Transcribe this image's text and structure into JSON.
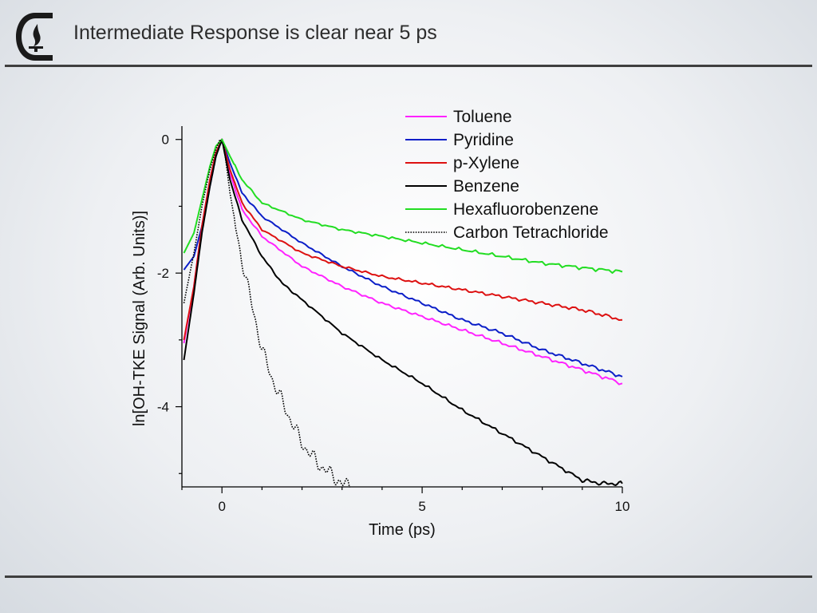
{
  "slide": {
    "title": "Intermediate Response is clear near 5 ps"
  },
  "logo": {
    "icon": "flame-c-logo-icon"
  },
  "colors": {
    "Toluene": "#ff22ff",
    "Pyridine": "#0b1ec8",
    "p-Xylene": "#dd1111",
    "Benzene": "#000000",
    "Hexafluorobenzene": "#22dd22",
    "Carbon Tetrachloride": "#000000"
  },
  "chart_data": {
    "type": "line",
    "title": "",
    "xlabel": "Time (ps)",
    "ylabel": "ln[OH-TKE Signal (Arb. Units)]",
    "xlim": [
      -1,
      10
    ],
    "ylim": [
      -5.2,
      0.2
    ],
    "xticks": [
      0,
      5,
      10
    ],
    "yticks": [
      0,
      -2,
      -4
    ],
    "legend_position": "top-right",
    "series": [
      {
        "name": "Toluene",
        "style": "solid",
        "x": [
          -0.95,
          -0.7,
          -0.5,
          -0.3,
          -0.15,
          0,
          0.2,
          0.5,
          1,
          2,
          3,
          4,
          5,
          6,
          7,
          8,
          9,
          10
        ],
        "y": [
          -3.05,
          -2.2,
          -1.3,
          -0.6,
          -0.2,
          0,
          -0.5,
          -1.05,
          -1.45,
          -1.9,
          -2.2,
          -2.45,
          -2.65,
          -2.85,
          -3.05,
          -3.25,
          -3.45,
          -3.65
        ]
      },
      {
        "name": "Pyridine",
        "style": "solid",
        "x": [
          -0.95,
          -0.7,
          -0.5,
          -0.3,
          -0.15,
          0,
          0.2,
          0.5,
          1,
          2,
          3,
          4,
          5,
          6,
          7,
          8,
          9,
          10
        ],
        "y": [
          -1.95,
          -1.75,
          -1.3,
          -0.7,
          -0.25,
          0,
          -0.35,
          -0.8,
          -1.15,
          -1.55,
          -1.9,
          -2.2,
          -2.45,
          -2.7,
          -2.9,
          -3.15,
          -3.35,
          -3.55
        ]
      },
      {
        "name": "p-Xylene",
        "style": "solid",
        "x": [
          -0.95,
          -0.7,
          -0.5,
          -0.3,
          -0.15,
          0,
          0.2,
          0.5,
          1,
          2,
          3,
          4,
          5,
          6,
          7,
          8,
          9,
          10
        ],
        "y": [
          -3.0,
          -2.2,
          -1.3,
          -0.6,
          -0.2,
          0,
          -0.45,
          -0.95,
          -1.35,
          -1.7,
          -1.9,
          -2.05,
          -2.15,
          -2.25,
          -2.35,
          -2.45,
          -2.55,
          -2.7
        ]
      },
      {
        "name": "Benzene",
        "style": "solid",
        "x": [
          -0.95,
          -0.7,
          -0.5,
          -0.3,
          -0.15,
          0,
          0.2,
          0.5,
          1,
          1.5,
          2,
          3,
          4,
          5,
          6,
          7,
          8,
          9,
          9.5,
          10
        ],
        "y": [
          -3.3,
          -2.3,
          -1.4,
          -0.7,
          -0.25,
          0,
          -0.6,
          -1.2,
          -1.75,
          -2.15,
          -2.4,
          -2.9,
          -3.3,
          -3.65,
          -4.05,
          -4.4,
          -4.75,
          -5.1,
          -5.15,
          -5.15
        ]
      },
      {
        "name": "Hexafluorobenzene",
        "style": "solid",
        "x": [
          -0.95,
          -0.7,
          -0.5,
          -0.3,
          -0.15,
          0,
          0.2,
          0.5,
          1,
          2,
          3,
          4,
          5,
          6,
          7,
          8,
          9,
          10
        ],
        "y": [
          -1.7,
          -1.4,
          -0.9,
          -0.4,
          -0.1,
          0,
          -0.25,
          -0.6,
          -0.95,
          -1.2,
          -1.35,
          -1.45,
          -1.55,
          -1.65,
          -1.75,
          -1.85,
          -1.92,
          -1.98
        ]
      },
      {
        "name": "Carbon Tetrachloride",
        "style": "dotted",
        "x": [
          -0.95,
          -0.7,
          -0.5,
          -0.3,
          -0.15,
          -0.05,
          0.05,
          0.2,
          0.4,
          0.6,
          0.8,
          1.0,
          1.3,
          1.6,
          2.0,
          2.4,
          2.8,
          3.0,
          3.2
        ],
        "y": [
          -2.45,
          -1.7,
          -1.0,
          -0.45,
          -0.15,
          0,
          -0.1,
          -0.8,
          -1.5,
          -2.1,
          -2.6,
          -3.15,
          -3.65,
          -4.05,
          -4.55,
          -4.85,
          -5.05,
          -5.15,
          -5.2
        ]
      }
    ]
  }
}
